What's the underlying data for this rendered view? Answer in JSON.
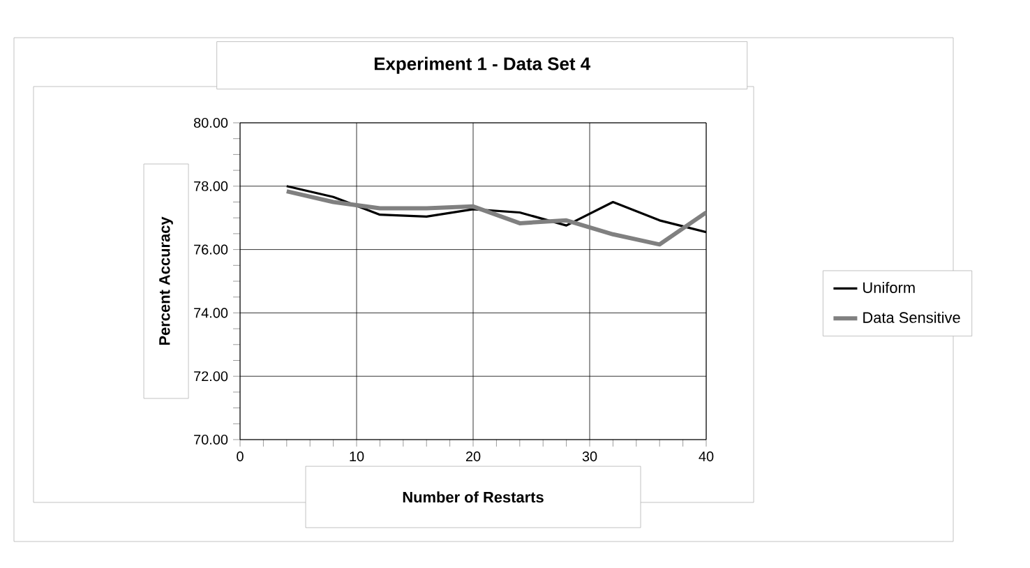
{
  "chart_data": {
    "type": "line",
    "title": "Experiment 1 -  Data Set 4",
    "xlabel": "Number  of  Restarts",
    "ylabel": "Percent Accuracy",
    "xlim": [
      0,
      40
    ],
    "xticks": [
      0,
      10,
      20,
      30,
      40
    ],
    "ylim": [
      70,
      80
    ],
    "yticks": [
      {
        "value": 70,
        "label": "70.00"
      },
      {
        "value": 72,
        "label": "72.00"
      },
      {
        "value": 74,
        "label": "74.00"
      },
      {
        "value": 76,
        "label": "76.00"
      },
      {
        "value": 78,
        "label": "78.00"
      },
      {
        "value": 80,
        "label": "80.00"
      }
    ],
    "grid": true,
    "legend": "right",
    "x": [
      4,
      8,
      12,
      16,
      20,
      24,
      28,
      32,
      36,
      40
    ],
    "series": [
      {
        "name": "Uniform",
        "color": "#000000",
        "values": [
          78.0,
          77.66,
          77.1,
          77.04,
          77.27,
          77.17,
          76.76,
          77.5,
          76.92,
          76.55
        ]
      },
      {
        "name": "Data Sensitive",
        "color": "#808080",
        "values": [
          77.84,
          77.5,
          77.3,
          77.3,
          77.36,
          76.83,
          76.92,
          76.48,
          76.16,
          77.17
        ]
      }
    ]
  }
}
